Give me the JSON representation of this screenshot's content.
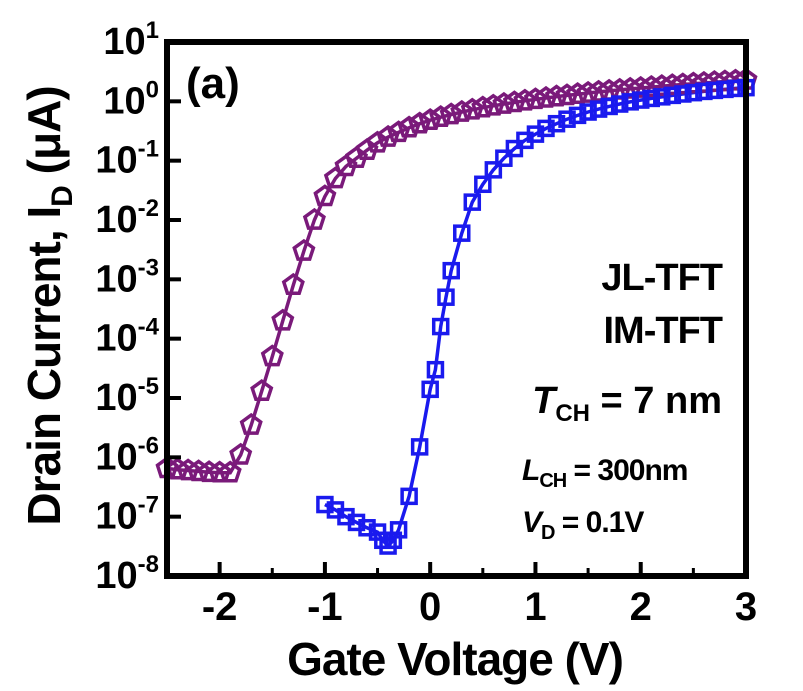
{
  "chart_data": {
    "type": "scatter",
    "panel_label": "(a)",
    "xlabel": "Gate Voltage (V)",
    "ylabel": {
      "main": "Drain Current, I",
      "sub": "D",
      "unit": " (μA)"
    },
    "xlim": [
      -2.5,
      3
    ],
    "ylim": [
      1e-08,
      10
    ],
    "yscale": "log",
    "xticks": [
      {
        "value": -2,
        "label": "-2"
      },
      {
        "value": -1,
        "label": "-1"
      },
      {
        "value": 0,
        "label": "0"
      },
      {
        "value": 1,
        "label": "1"
      },
      {
        "value": 2,
        "label": "2"
      },
      {
        "value": 3,
        "label": "3"
      }
    ],
    "yticks": [
      {
        "exp": 1,
        "base": "10",
        "sup": "1"
      },
      {
        "exp": 0,
        "base": "10",
        "sup": "0"
      },
      {
        "exp": -1,
        "base": "10",
        "sup": "-1"
      },
      {
        "exp": -2,
        "base": "10",
        "sup": "-2"
      },
      {
        "exp": -3,
        "base": "10",
        "sup": "-3"
      },
      {
        "exp": -4,
        "base": "10",
        "sup": "-4"
      },
      {
        "exp": -5,
        "base": "10",
        "sup": "-5"
      },
      {
        "exp": -6,
        "base": "10",
        "sup": "-6"
      },
      {
        "exp": -7,
        "base": "10",
        "sup": "-7"
      },
      {
        "exp": -8,
        "base": "10",
        "sup": "-8"
      }
    ],
    "legend_placement": "right",
    "legend": [
      {
        "label": "JL-TFT",
        "color": "#7a1a7a",
        "marker": "pentagon"
      },
      {
        "label": "IM-TFT",
        "color": "#1a1aee",
        "marker": "square"
      }
    ],
    "annotations": [
      {
        "italic": "T",
        "sub": "CH",
        "rest": " = 7 nm"
      },
      {
        "italic": "L",
        "sub": "CH",
        "rest": " = 300nm"
      },
      {
        "italic": "V",
        "sub": "D",
        "rest": " = 0.1V"
      }
    ],
    "series": [
      {
        "name": "JL-TFT",
        "color": "#7a1a7a",
        "marker": "pentagon",
        "x": [
          -2.5,
          -2.4,
          -2.3,
          -2.2,
          -2.1,
          -2.0,
          -1.9,
          -1.8,
          -1.7,
          -1.6,
          -1.5,
          -1.4,
          -1.3,
          -1.2,
          -1.1,
          -1.0,
          -0.9,
          -0.8,
          -0.7,
          -0.6,
          -0.5,
          -0.4,
          -0.3,
          -0.2,
          -0.1,
          0.0,
          0.1,
          0.2,
          0.3,
          0.4,
          0.5,
          0.6,
          0.7,
          0.8,
          0.9,
          1.0,
          1.1,
          1.2,
          1.3,
          1.4,
          1.5,
          1.6,
          1.7,
          1.8,
          1.9,
          2.0,
          2.1,
          2.2,
          2.3,
          2.4,
          2.5,
          2.6,
          2.7,
          2.8,
          2.9,
          3.0
        ],
        "y": [
          6.5e-07,
          6.2e-07,
          6e-07,
          5.8e-07,
          5.6e-07,
          5.5e-07,
          5.5e-07,
          1.1e-06,
          3.5e-06,
          1.3e-05,
          5e-05,
          0.0002,
          0.0008,
          0.003,
          0.01,
          0.025,
          0.05,
          0.08,
          0.11,
          0.15,
          0.2,
          0.25,
          0.3,
          0.36,
          0.42,
          0.48,
          0.54,
          0.6,
          0.66,
          0.72,
          0.78,
          0.84,
          0.9,
          0.96,
          1.02,
          1.08,
          1.14,
          1.2,
          1.26,
          1.32,
          1.38,
          1.44,
          1.5,
          1.56,
          1.62,
          1.68,
          1.74,
          1.8,
          1.86,
          1.92,
          1.98,
          2.04,
          2.1,
          2.16,
          2.22,
          2.3
        ]
      },
      {
        "name": "IM-TFT",
        "color": "#1a1aee",
        "marker": "square",
        "x": [
          -1.0,
          -0.9,
          -0.8,
          -0.7,
          -0.6,
          -0.5,
          -0.45,
          -0.4,
          -0.35,
          -0.3,
          -0.2,
          -0.1,
          0.0,
          0.05,
          0.1,
          0.15,
          0.2,
          0.3,
          0.4,
          0.5,
          0.6,
          0.7,
          0.8,
          0.9,
          1.0,
          1.1,
          1.2,
          1.3,
          1.4,
          1.5,
          1.6,
          1.7,
          1.8,
          1.9,
          2.0,
          2.1,
          2.2,
          2.3,
          2.4,
          2.5,
          2.6,
          2.7,
          2.8,
          2.9,
          3.0
        ],
        "y": [
          1.6e-07,
          1.3e-07,
          1e-07,
          8e-08,
          6.5e-08,
          5.5e-08,
          4e-08,
          3.2e-08,
          4e-08,
          6e-08,
          2.2e-07,
          1.5e-06,
          1.4e-05,
          3e-05,
          0.00016,
          0.0005,
          0.0014,
          0.006,
          0.02,
          0.04,
          0.07,
          0.11,
          0.16,
          0.22,
          0.28,
          0.35,
          0.42,
          0.5,
          0.58,
          0.66,
          0.74,
          0.82,
          0.9,
          0.98,
          1.05,
          1.12,
          1.19,
          1.26,
          1.33,
          1.4,
          1.47,
          1.53,
          1.59,
          1.65,
          1.7
        ]
      }
    ]
  }
}
